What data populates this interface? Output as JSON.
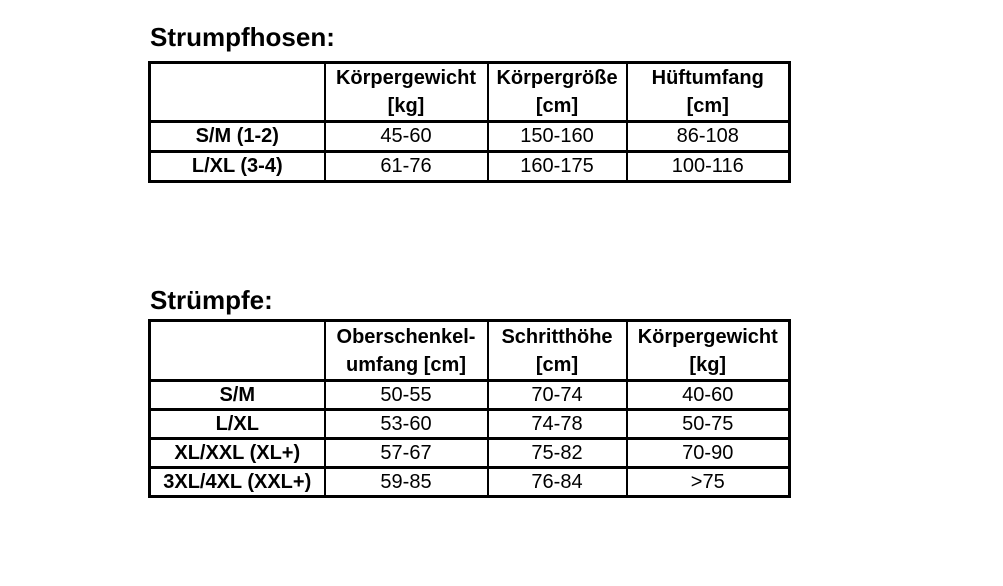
{
  "page": {
    "background_color": "#ffffff",
    "text_color": "#000000",
    "border_color": "#000000"
  },
  "tables": [
    {
      "title": "Strumpfhosen:",
      "columns": [
        {
          "line1": "",
          "line2": ""
        },
        {
          "line1": "Körpergewicht",
          "line2": "[kg]"
        },
        {
          "line1": "Körpergröße",
          "line2": "[cm]"
        },
        {
          "line1": "Hüftumfang",
          "line2": "[cm]"
        }
      ],
      "rows": [
        {
          "label": "S/M (1-2)",
          "values": [
            "45-60",
            "150-160",
            "86-108"
          ]
        },
        {
          "label": "L/XL (3-4)",
          "values": [
            "61-76",
            "160-175",
            "100-116"
          ]
        }
      ]
    },
    {
      "title": "Strümpfe:",
      "columns": [
        {
          "line1": "",
          "line2": ""
        },
        {
          "line1": "Oberschenkel-",
          "line2": "umfang [cm]"
        },
        {
          "line1": "Schritthöhe",
          "line2": "[cm]"
        },
        {
          "line1": "Körpergewicht",
          "line2": "[kg]"
        }
      ],
      "rows": [
        {
          "label": "S/M",
          "values": [
            "50-55",
            "70-74",
            "40-60"
          ]
        },
        {
          "label": "L/XL",
          "values": [
            "53-60",
            "74-78",
            "50-75"
          ]
        },
        {
          "label": "XL/XXL (XL+)",
          "values": [
            "57-67",
            "75-82",
            "70-90"
          ]
        },
        {
          "label": "3XL/4XL (XXL+)",
          "values": [
            "59-85",
            "76-84",
            ">75"
          ]
        }
      ]
    }
  ]
}
